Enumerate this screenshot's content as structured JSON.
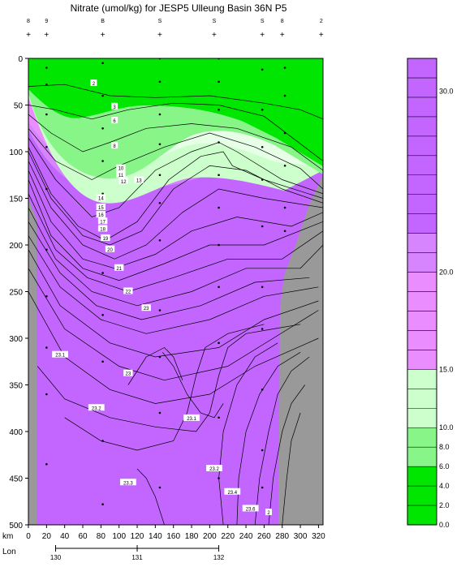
{
  "chart_data": {
    "type": "heatmap",
    "title": "Nitrate (umol/kg) for JESP5 Ulleung Basin 36N P5",
    "xlabel": "km",
    "xlabel2": "Lon",
    "x_ticks": [
      0,
      20,
      40,
      60,
      80,
      100,
      120,
      140,
      160,
      180,
      200,
      220,
      240,
      260,
      280,
      300,
      320
    ],
    "xlim": [
      0,
      325
    ],
    "ylim": [
      0,
      500
    ],
    "y_ticks": [
      0,
      50,
      100,
      150,
      200,
      250,
      300,
      350,
      400,
      450,
      500
    ],
    "lon_ticks": [
      "130",
      "131",
      "132"
    ],
    "lon_km": [
      30,
      120,
      210
    ],
    "stations": [
      {
        "label": "8",
        "km": 0
      },
      {
        "label": "9",
        "km": 20
      },
      {
        "label": "B",
        "km": 82
      },
      {
        "label": "S",
        "km": 145
      },
      {
        "label": "S",
        "km": 205
      },
      {
        "label": "S",
        "km": 258
      },
      {
        "label": "8",
        "km": 280
      },
      {
        "label": "2",
        "km": 323
      }
    ],
    "colorbar": {
      "levels": [
        0,
        2,
        4,
        6,
        8,
        10,
        12,
        14,
        15,
        16,
        17,
        18,
        19,
        20,
        21,
        22,
        23,
        24,
        25,
        26,
        27,
        28,
        29,
        30,
        31
      ],
      "tick_labels": [
        "0.0",
        "2.0",
        "4.0",
        "6.0",
        "8.0",
        "10.0",
        "15.0",
        "20.0",
        "30.0"
      ],
      "tick_values": [
        0,
        2,
        4,
        6,
        8,
        10,
        15,
        20,
        30
      ]
    },
    "contour_labels": [
      "2",
      "3",
      "6",
      "8",
      "10",
      "11",
      "12",
      "13",
      "14",
      "15",
      "16",
      "17",
      "18",
      "19",
      "20",
      "21",
      "22",
      "23",
      "23.1",
      "23",
      "23.2",
      "23.1",
      "23.2",
      "23.3",
      "23.4",
      "23.6",
      "2"
    ],
    "samples": [
      {
        "km": 20,
        "depths": [
          10,
          28,
          60,
          95,
          140,
          205,
          255,
          310,
          360,
          435
        ]
      },
      {
        "km": 82,
        "depths": [
          5,
          40,
          75,
          110,
          145,
          180,
          230,
          275,
          325,
          410,
          478
        ]
      },
      {
        "km": 145,
        "depths": [
          0,
          25,
          60,
          92,
          125,
          155,
          195,
          270,
          320,
          380,
          460
        ]
      },
      {
        "km": 210,
        "depths": [
          0,
          25,
          55,
          90,
          125,
          160,
          200,
          245,
          305,
          385,
          450
        ]
      },
      {
        "km": 258,
        "depths": [
          12,
          55,
          95,
          130,
          180,
          245,
          290,
          355,
          420,
          460
        ]
      },
      {
        "km": 283,
        "depths": [
          10,
          40,
          80,
          115,
          160,
          185
        ]
      }
    ]
  }
}
